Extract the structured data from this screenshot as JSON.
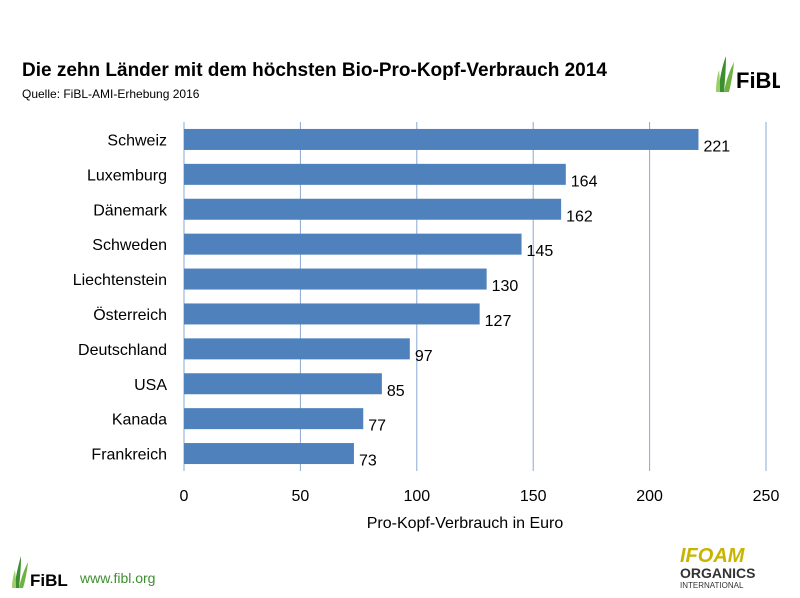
{
  "header": {
    "title": "Die zehn Länder mit dem höchsten Bio-Pro-Kopf-Verbrauch 2014",
    "source": "Quelle: FiBL-AMI-Erhebung 2016"
  },
  "logos": {
    "fibl_text": "FiBL",
    "ifoam_line1": "IFOAM",
    "ifoam_line2": "ORGANICS",
    "ifoam_line3": "INTERNATIONAL"
  },
  "footer": {
    "url": "www.fibl.org"
  },
  "colors": {
    "bar": "#4f81bd",
    "grid": "#8aa8d4",
    "fibl_green": "#3c8f2e",
    "ifoam_yellow": "#c8b400"
  },
  "chart_data": {
    "type": "bar",
    "orientation": "horizontal",
    "categories": [
      "Schweiz",
      "Luxemburg",
      "Dänemark",
      "Schweden",
      "Liechtenstein",
      "Österreich",
      "Deutschland",
      "USA",
      "Kanada",
      "Frankreich"
    ],
    "values": [
      221,
      164,
      162,
      145,
      130,
      127,
      97,
      85,
      77,
      73
    ],
    "xlabel": "Pro-Kopf-Verbrauch in Euro",
    "xlim": [
      0,
      250
    ],
    "xticks": [
      0,
      50,
      100,
      150,
      200,
      250
    ],
    "grid": "vertical",
    "data_labels": true
  }
}
